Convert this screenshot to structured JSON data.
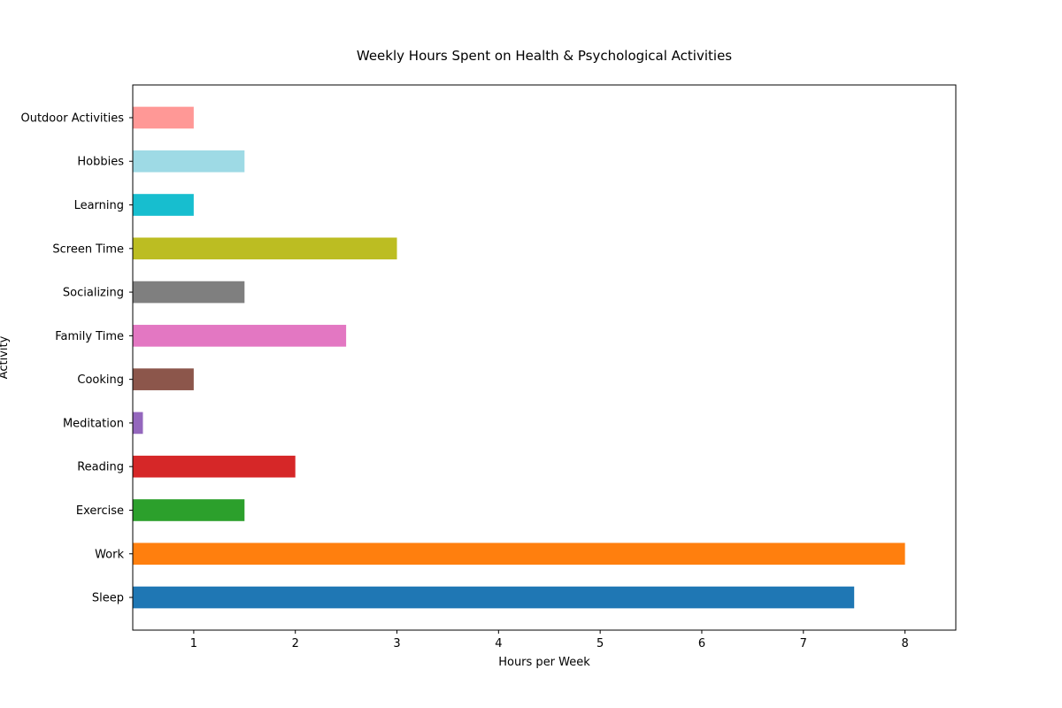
{
  "chart_data": {
    "type": "bar",
    "orientation": "horizontal",
    "title": "Weekly Hours Spent on Health & Psychological Activities",
    "xlabel": "Hours per Week",
    "ylabel": "Activity",
    "xlim": [
      0.4,
      8.5
    ],
    "xticks": [
      1,
      2,
      3,
      4,
      5,
      6,
      7,
      8
    ],
    "grid": false,
    "legend": "none",
    "categories": [
      "Sleep",
      "Work",
      "Exercise",
      "Reading",
      "Meditation",
      "Cooking",
      "Family Time",
      "Socializing",
      "Screen Time",
      "Learning",
      "Hobbies",
      "Outdoor Activities"
    ],
    "values": [
      7.5,
      8,
      1.5,
      2,
      0.5,
      1,
      2.5,
      1.5,
      3,
      1,
      1.5,
      1
    ],
    "colors": [
      "#1f77b4",
      "#ff7f0e",
      "#2ca02c",
      "#d62728",
      "#9467bd",
      "#8c564b",
      "#e377c2",
      "#7f7f7f",
      "#bcbd22",
      "#17becf",
      "#9edae5",
      "#ff9896"
    ]
  }
}
